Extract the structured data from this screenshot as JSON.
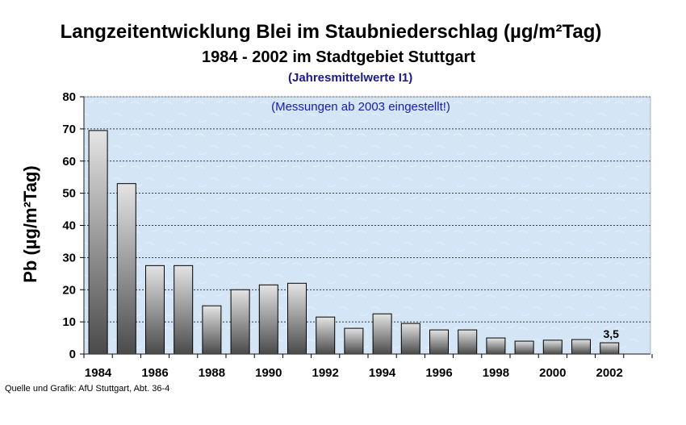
{
  "chart_data": {
    "type": "bar",
    "title": "Langzeitentwicklung Blei im Staubniederschlag (µg/m²Tag)",
    "subtitle": "1984 - 2002 im Stadtgebiet Stuttgart",
    "subtitle2": "(Jahresmittelwerte I1)",
    "ylabel": "Pb (µg/m²Tag)",
    "xlabel": "",
    "annotation": "(Messungen ab 2003 eingestellt!)",
    "categories": [
      "1984",
      "1985",
      "1986",
      "1987",
      "1988",
      "1989",
      "1990",
      "1991",
      "1992",
      "1993",
      "1994",
      "1995",
      "1996",
      "1997",
      "1998",
      "1999",
      "2000",
      "2001",
      "2002"
    ],
    "values": [
      69.5,
      53,
      27.5,
      27.5,
      15,
      20,
      21.5,
      22,
      11.5,
      8,
      12.5,
      9.5,
      7.5,
      7.5,
      5,
      4,
      4.3,
      4.5,
      3.5
    ],
    "x_tick_labels": [
      "1984",
      "1986",
      "1988",
      "1990",
      "1992",
      "1994",
      "1996",
      "1998",
      "2000",
      "2002"
    ],
    "y_ticks": [
      0,
      10,
      20,
      30,
      40,
      50,
      60,
      70,
      80
    ],
    "ylim": [
      0,
      80
    ],
    "data_labels": [
      {
        "category": "2002",
        "text": "3,5"
      }
    ],
    "grid": true,
    "colors": {
      "plot_background": "#d4e6f5",
      "bar_light": "#e4e4e4",
      "bar_dark": "#4a4a4a",
      "annotation": "#1a1ab0",
      "subtitle2": "#1a1a8c"
    }
  },
  "footer": {
    "source": "Quelle und Grafik: AfU Stuttgart, Abt. 36-4"
  }
}
